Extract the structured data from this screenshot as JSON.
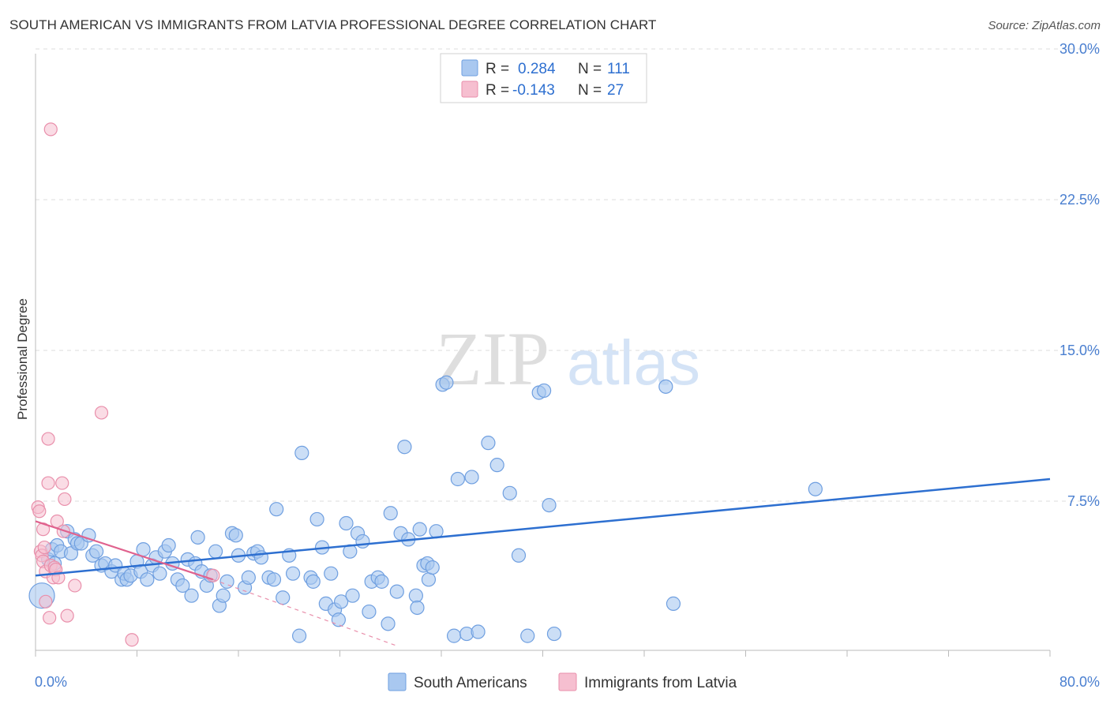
{
  "header": {
    "title": "SOUTH AMERICAN VS IMMIGRANTS FROM LATVIA PROFESSIONAL DEGREE CORRELATION CHART",
    "source": "Source: ZipAtlas.com"
  },
  "watermark": {
    "zip": "ZIP",
    "atlas": "atlas"
  },
  "colors": {
    "blue_fill": "#a9c8f0",
    "blue_stroke": "#6f9fe0",
    "blue_line": "#2d6fd0",
    "pink_fill": "#f6bfd0",
    "pink_stroke": "#e98fab",
    "pink_line": "#e0628e",
    "grid": "#dddddd",
    "tick_text": "#4a7fd0"
  },
  "legend": {
    "rows": [
      {
        "r_label": "R =",
        "r_value": "0.284",
        "n_label": "N =",
        "n_value": "111"
      },
      {
        "r_label": "R =",
        "r_value": "-0.143",
        "n_label": "N =",
        "n_value": "27"
      }
    ]
  },
  "bottom_legend": [
    "South Americans",
    "Immigrants from Latvia"
  ],
  "chart_data": {
    "type": "scatter",
    "title": "SOUTH AMERICAN VS IMMIGRANTS FROM LATVIA PROFESSIONAL DEGREE CORRELATION CHART",
    "xlabel": "",
    "ylabel": "Professional Degree",
    "xlim": [
      0,
      80
    ],
    "ylim": [
      0,
      30
    ],
    "y_ticks": [
      7.5,
      15.0,
      22.5,
      30.0
    ],
    "y_tick_labels": [
      "7.5%",
      "15.0%",
      "22.5%",
      "30.0%"
    ],
    "x_tick_labels": [
      "0.0%",
      "80.0%"
    ],
    "grid": true,
    "series": [
      {
        "name": "South Americans",
        "R": 0.284,
        "N": 111,
        "trend": {
          "x": [
            0,
            80
          ],
          "y": [
            3.8,
            8.6
          ]
        },
        "points": [
          [
            0.5,
            2.8
          ],
          [
            1.0,
            4.6
          ],
          [
            1.3,
            5.1
          ],
          [
            1.5,
            4.4
          ],
          [
            1.7,
            5.3
          ],
          [
            2.0,
            5.0
          ],
          [
            2.5,
            6.0
          ],
          [
            2.8,
            4.9
          ],
          [
            3.1,
            5.6
          ],
          [
            3.3,
            5.4
          ],
          [
            3.6,
            5.4
          ],
          [
            4.2,
            5.8
          ],
          [
            4.5,
            4.8
          ],
          [
            4.8,
            5.0
          ],
          [
            5.2,
            4.3
          ],
          [
            5.5,
            4.4
          ],
          [
            6.0,
            4.0
          ],
          [
            6.3,
            4.3
          ],
          [
            6.8,
            3.6
          ],
          [
            7.0,
            3.9
          ],
          [
            7.2,
            3.6
          ],
          [
            7.5,
            3.8
          ],
          [
            8.0,
            4.5
          ],
          [
            8.3,
            4.0
          ],
          [
            8.5,
            5.1
          ],
          [
            8.8,
            3.6
          ],
          [
            9.2,
            4.3
          ],
          [
            9.5,
            4.7
          ],
          [
            9.8,
            3.9
          ],
          [
            10.2,
            5.0
          ],
          [
            10.5,
            5.3
          ],
          [
            10.8,
            4.4
          ],
          [
            11.2,
            3.6
          ],
          [
            11.6,
            3.3
          ],
          [
            12.0,
            4.6
          ],
          [
            12.3,
            2.8
          ],
          [
            12.6,
            4.4
          ],
          [
            12.8,
            5.7
          ],
          [
            13.1,
            4.0
          ],
          [
            13.5,
            3.3
          ],
          [
            13.8,
            3.8
          ],
          [
            14.2,
            5.0
          ],
          [
            14.5,
            2.3
          ],
          [
            14.8,
            2.8
          ],
          [
            15.1,
            3.5
          ],
          [
            15.5,
            5.9
          ],
          [
            15.8,
            5.8
          ],
          [
            16.0,
            4.8
          ],
          [
            16.5,
            3.2
          ],
          [
            16.8,
            3.7
          ],
          [
            17.2,
            4.9
          ],
          [
            17.5,
            5.0
          ],
          [
            17.8,
            4.7
          ],
          [
            18.4,
            3.7
          ],
          [
            18.8,
            3.6
          ],
          [
            19.0,
            7.1
          ],
          [
            19.5,
            2.7
          ],
          [
            20.0,
            4.8
          ],
          [
            20.3,
            3.9
          ],
          [
            20.8,
            0.8
          ],
          [
            21.0,
            9.9
          ],
          [
            21.7,
            3.7
          ],
          [
            21.9,
            3.5
          ],
          [
            22.2,
            6.6
          ],
          [
            22.6,
            5.2
          ],
          [
            22.9,
            2.4
          ],
          [
            23.3,
            3.9
          ],
          [
            23.6,
            2.1
          ],
          [
            23.9,
            1.6
          ],
          [
            24.1,
            2.5
          ],
          [
            24.5,
            6.4
          ],
          [
            24.8,
            5.0
          ],
          [
            25.0,
            2.8
          ],
          [
            25.4,
            5.9
          ],
          [
            25.8,
            5.5
          ],
          [
            26.3,
            2.0
          ],
          [
            26.5,
            3.5
          ],
          [
            27.0,
            3.7
          ],
          [
            27.3,
            3.5
          ],
          [
            27.8,
            1.4
          ],
          [
            28.0,
            6.9
          ],
          [
            28.5,
            3.0
          ],
          [
            28.8,
            5.9
          ],
          [
            29.1,
            10.2
          ],
          [
            29.4,
            5.6
          ],
          [
            30.0,
            2.8
          ],
          [
            30.1,
            2.2
          ],
          [
            30.3,
            6.1
          ],
          [
            30.6,
            4.3
          ],
          [
            30.9,
            4.4
          ],
          [
            31.0,
            3.6
          ],
          [
            31.3,
            4.2
          ],
          [
            31.6,
            6.0
          ],
          [
            32.1,
            13.3
          ],
          [
            32.4,
            13.4
          ],
          [
            33.0,
            0.8
          ],
          [
            33.3,
            8.6
          ],
          [
            34.0,
            0.9
          ],
          [
            34.4,
            8.7
          ],
          [
            34.9,
            1.0
          ],
          [
            35.7,
            10.4
          ],
          [
            36.4,
            9.3
          ],
          [
            37.4,
            7.9
          ],
          [
            38.8,
            0.8
          ],
          [
            39.7,
            12.9
          ],
          [
            40.1,
            13.0
          ],
          [
            40.5,
            7.3
          ],
          [
            40.9,
            0.9
          ],
          [
            38.1,
            4.8
          ],
          [
            49.7,
            13.2
          ],
          [
            50.3,
            2.4
          ],
          [
            61.5,
            8.1
          ]
        ]
      },
      {
        "name": "Immigrants from Latvia",
        "R": -0.143,
        "N": 27,
        "trend": {
          "x": [
            0,
            14
          ],
          "y": [
            6.5,
            3.6
          ]
        },
        "trend_ext": {
          "x": [
            14,
            28.5
          ],
          "y": [
            3.6,
            0.3
          ]
        },
        "points": [
          [
            0.2,
            7.2
          ],
          [
            0.3,
            7.0
          ],
          [
            0.4,
            5.0
          ],
          [
            0.5,
            4.8
          ],
          [
            0.6,
            4.5
          ],
          [
            0.7,
            5.2
          ],
          [
            0.8,
            4.0
          ],
          [
            0.8,
            2.5
          ],
          [
            1.0,
            8.4
          ],
          [
            1.0,
            10.6
          ],
          [
            1.1,
            1.7
          ],
          [
            1.2,
            26.0
          ],
          [
            1.2,
            4.3
          ],
          [
            1.4,
            3.7
          ],
          [
            1.5,
            4.2
          ],
          [
            1.6,
            4.1
          ],
          [
            1.7,
            6.5
          ],
          [
            1.8,
            3.7
          ],
          [
            2.1,
            8.4
          ],
          [
            2.2,
            6.0
          ],
          [
            2.3,
            7.6
          ],
          [
            2.5,
            1.8
          ],
          [
            3.1,
            3.3
          ],
          [
            5.2,
            11.9
          ],
          [
            7.6,
            0.6
          ],
          [
            14.0,
            3.8
          ],
          [
            0.6,
            6.1
          ]
        ]
      }
    ]
  }
}
